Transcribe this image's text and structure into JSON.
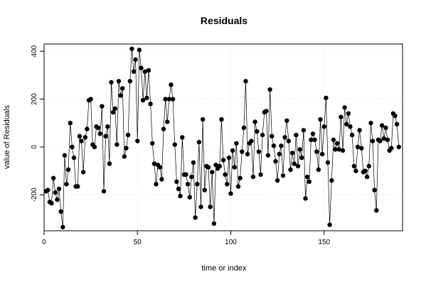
{
  "chart_data": {
    "type": "scatter",
    "title": "Residuals",
    "xlabel": "time or index",
    "ylabel": "value of Residuals",
    "xlim": [
      0,
      192
    ],
    "ylim": [
      -350,
      430
    ],
    "x_ticks": [
      0,
      50,
      100,
      150
    ],
    "y_ticks": [
      -200,
      0,
      200,
      400
    ],
    "grid": true,
    "connect_points": true,
    "point_color": "#000000",
    "line_color": "#000000",
    "series": [
      {
        "y": [
          -185,
          -180,
          -230,
          -235,
          -130,
          -190,
          -220,
          -175,
          -270,
          -335,
          -35,
          -155,
          -95,
          100,
          0,
          -45,
          -165,
          -165,
          45,
          25,
          -105,
          40,
          75,
          195,
          200,
          10,
          0,
          85,
          80,
          55,
          170,
          -185,
          45,
          85,
          -70,
          270,
          145,
          160,
          10,
          275,
          215,
          245,
          -40,
          -5,
          50,
          275,
          410,
          315,
          365,
          25,
          405,
          330,
          195,
          315,
          205,
          320,
          180,
          15,
          -70,
          -155,
          -75,
          -85,
          -135,
          75,
          200,
          105,
          200,
          260,
          200,
          10,
          -145,
          -175,
          -205,
          40,
          -115,
          -115,
          -155,
          -210,
          -125,
          -65,
          -295,
          -155,
          20,
          -250,
          115,
          -180,
          -80,
          -85,
          -250,
          -105,
          -320,
          -75,
          -90,
          -80,
          115,
          -55,
          -115,
          -155,
          -45,
          -195,
          -15,
          -85,
          15,
          -165,
          -130,
          -20,
          80,
          275,
          -30,
          15,
          25,
          -125,
          105,
          65,
          -20,
          -115,
          50,
          145,
          150,
          -35,
          240,
          45,
          5,
          -60,
          -140,
          -30,
          5,
          -120,
          40,
          110,
          25,
          -95,
          -25,
          -70,
          50,
          -80,
          -10,
          -45,
          70,
          -215,
          -125,
          -145,
          30,
          55,
          30,
          -20,
          -95,
          115,
          -30,
          85,
          205,
          -65,
          -325,
          -140,
          30,
          -10,
          15,
          -10,
          125,
          -15,
          165,
          95,
          140,
          85,
          50,
          -80,
          -100,
          0,
          70,
          -5,
          -105,
          -100,
          -125,
          -80,
          100,
          25,
          -180,
          -265,
          30,
          25,
          90,
          35,
          80,
          30,
          -15,
          -5,
          140,
          130,
          95,
          0
        ]
      }
    ]
  }
}
